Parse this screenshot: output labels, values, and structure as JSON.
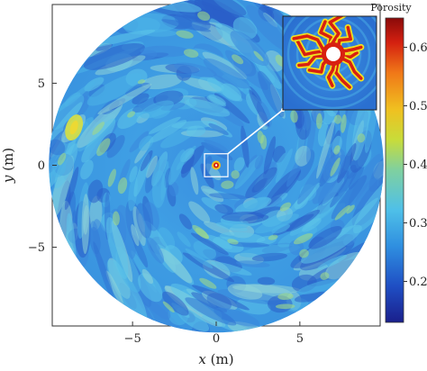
{
  "chart_data": {
    "type": "heatmap",
    "subtype": "polar-field",
    "title": "",
    "xlabel": "x (m)",
    "ylabel": "y (m)",
    "xlabel_parts": {
      "var": "x",
      "unit": " (m)"
    },
    "ylabel_parts": {
      "var": "y",
      "unit": " (m)"
    },
    "xlim": [
      -9.8,
      9.8
    ],
    "ylim": [
      -9.8,
      9.8
    ],
    "x_ticks": [
      {
        "value": -5,
        "label": "−5"
      },
      {
        "value": 0,
        "label": "0"
      },
      {
        "value": 5,
        "label": "5"
      }
    ],
    "y_ticks": [
      {
        "value": 5,
        "label": "5"
      },
      {
        "value": 0,
        "label": "0"
      },
      {
        "value": -5,
        "label": "−5"
      }
    ],
    "domain_radius": 10,
    "colorbar": {
      "title": "Porosity",
      "min": 0.13,
      "max": 0.65,
      "ticks": [
        {
          "value": 0.6,
          "label": "0.6"
        },
        {
          "value": 0.5,
          "label": "0.5"
        },
        {
          "value": 0.4,
          "label": "0.4"
        },
        {
          "value": 0.3,
          "label": "0.3"
        },
        {
          "value": 0.2,
          "label": "0.2"
        }
      ],
      "colormap": [
        "#1a1f8c",
        "#1f4fc4",
        "#2f8fe0",
        "#4fc0e8",
        "#7fd0a0",
        "#c8dc3a",
        "#f0c020",
        "#f07818",
        "#d42010",
        "#8a0a0a"
      ]
    },
    "field": {
      "background_porosity": 0.29,
      "notable_regions": [
        {
          "x": -8.5,
          "y": 2.3,
          "porosity": 0.45
        },
        {
          "x": 0,
          "y": 0,
          "porosity": 0.65
        }
      ]
    },
    "inset": {
      "zoom_region": {
        "x": [
          -0.7,
          0.7
        ],
        "y": [
          -0.7,
          0.7
        ]
      },
      "fractures": 12
    }
  }
}
